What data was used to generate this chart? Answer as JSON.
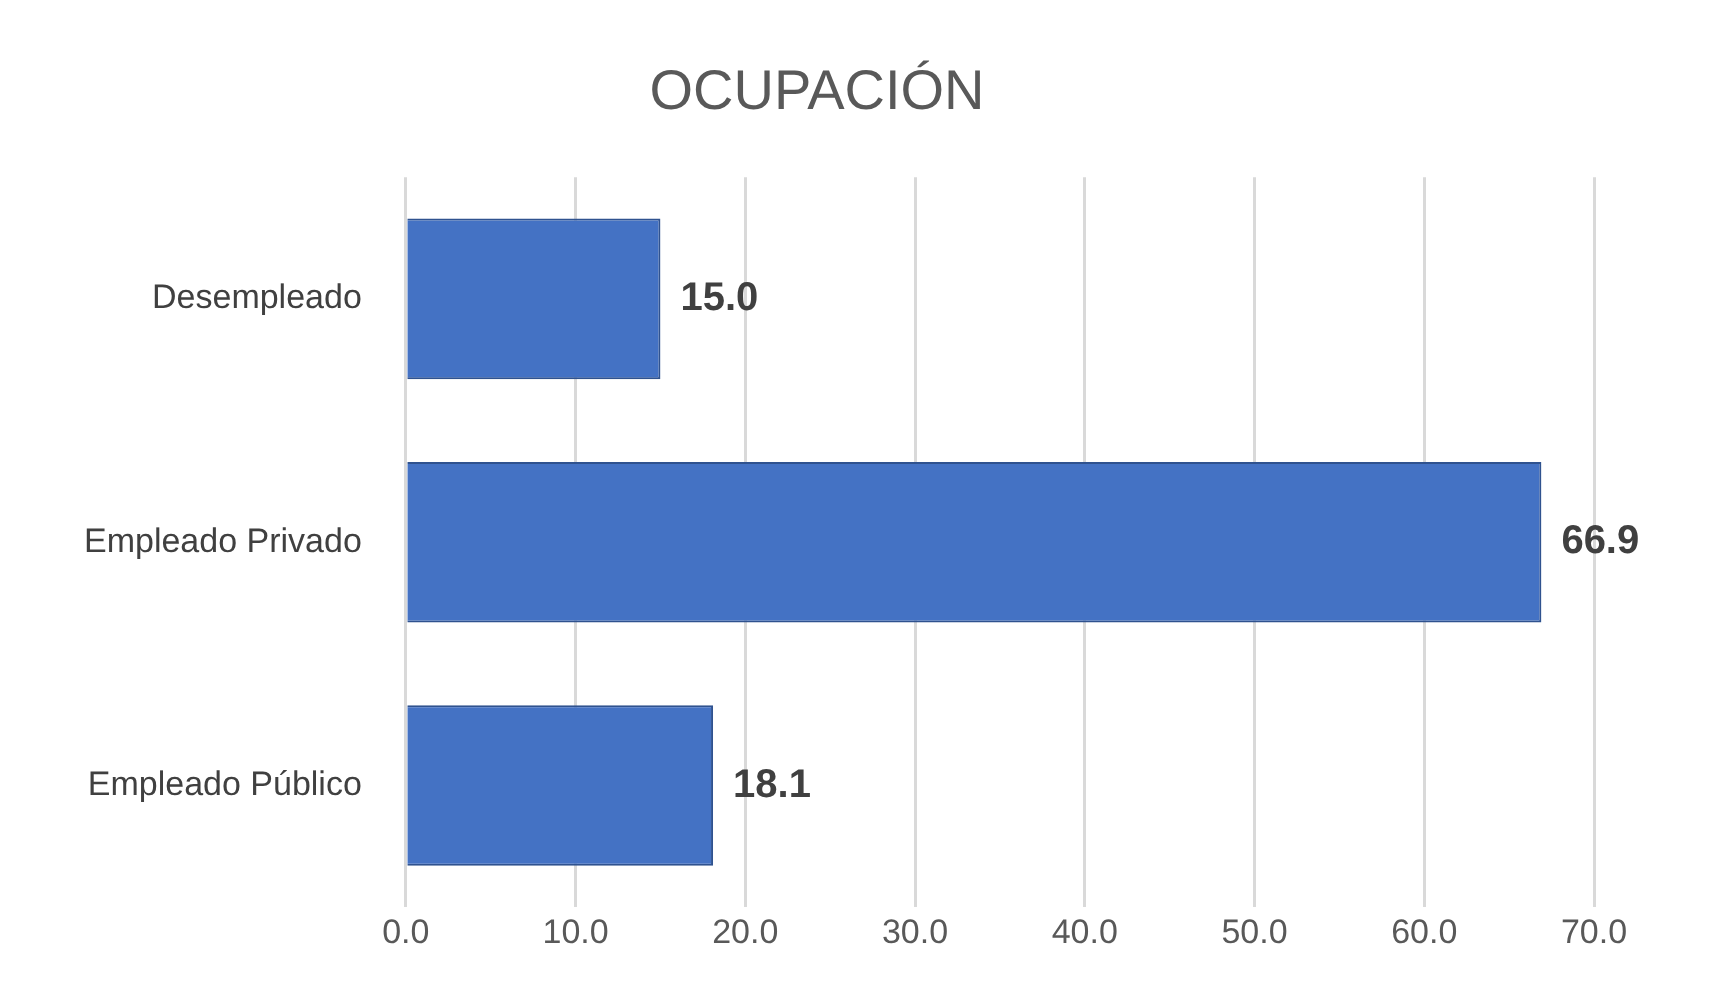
{
  "chart_data": {
    "type": "bar",
    "title": "OCUPACIÓN",
    "orientation": "horizontal",
    "categories": [
      "Desempleado",
      "Empleado Privado",
      "Empleado Público"
    ],
    "values": [
      15.0,
      66.9,
      18.1
    ],
    "value_labels": [
      "15.0",
      "66.9",
      "18.1"
    ],
    "color": "#4472c4",
    "xlim": [
      0,
      70
    ],
    "xticks": [
      {
        "value": 0,
        "label": "0.0"
      },
      {
        "value": 10,
        "label": "10.0"
      },
      {
        "value": 20,
        "label": "20.0"
      },
      {
        "value": 30,
        "label": "30.0"
      },
      {
        "value": 40,
        "label": "40.0"
      },
      {
        "value": 50,
        "label": "50.0"
      },
      {
        "value": 60,
        "label": "60.0"
      },
      {
        "value": 70,
        "label": "70.0"
      }
    ],
    "grid": "x"
  }
}
